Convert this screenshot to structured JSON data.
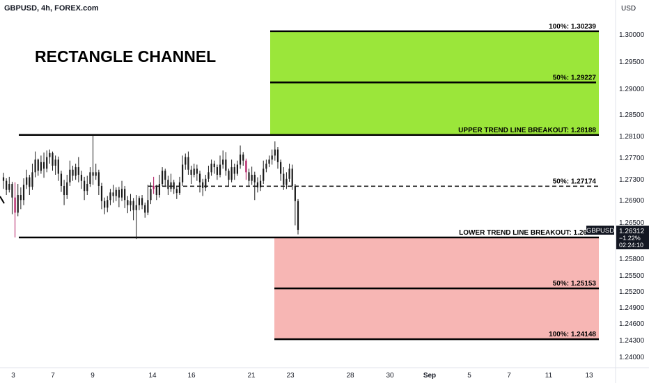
{
  "header": {
    "symbol": "GBPUSD, 4h, FOREX.com",
    "currency": "USD"
  },
  "title": "RECTANGLE CHANNEL",
  "colors": {
    "green_zone": "#9be63a",
    "red_zone": "#f7b6b4",
    "candle": "#1a1a1a",
    "candle_highlight": "#b0155e",
    "line": "#000000",
    "price_tag_bg": "#1a1a1a"
  },
  "price_axis": {
    "ticks": [
      "1.30000",
      "1.29500",
      "1.29000",
      "1.28500",
      "1.28100",
      "1.27700",
      "1.27300",
      "1.26900",
      "1.26500",
      "1.25800",
      "1.25500",
      "1.25200",
      "1.24900",
      "1.24600",
      "1.24300",
      "1.24000"
    ],
    "current_price": {
      "symbol": "GBPUSD",
      "price": "1.26312",
      "change": "−1.22%",
      "countdown": "02:24:10"
    }
  },
  "time_axis": {
    "ticks": [
      "3",
      "7",
      "9",
      "14",
      "16",
      "21",
      "23",
      "28",
      "30",
      "Sep",
      "5",
      "7",
      "11",
      "13"
    ]
  },
  "levels": {
    "upper_100": "100%: 1.30239",
    "upper_50": "50%: 1.29227",
    "upper_breakout": "UPPER TREND LINE BREAKOUT: 1.28188",
    "mid_50": "50%: 1.27174",
    "lower_breakout": "LOWER TREND LINE BREAKOUT: 1.26",
    "lower_50": "50%: 1.25153",
    "lower_100": "100%: 1.24148"
  },
  "chart_data": {
    "type": "candlestick",
    "symbol": "GBPUSD",
    "timeframe": "4h",
    "ylim": [
      1.2385,
      1.305
    ],
    "levels": [
      {
        "label": "100%",
        "value": 1.30239
      },
      {
        "label": "50%",
        "value": 1.29227
      },
      {
        "label": "UPPER TREND LINE BREAKOUT",
        "value": 1.28188
      },
      {
        "label": "50%",
        "value": 1.27174
      },
      {
        "label": "LOWER TREND LINE BREAKOUT",
        "value": 1.2616
      },
      {
        "label": "50%",
        "value": 1.25153
      },
      {
        "label": "100%",
        "value": 1.24148
      }
    ],
    "candles": [
      [
        1.2735,
        1.2728,
        1.2744,
        1.2712
      ],
      [
        1.2728,
        1.271,
        1.2733,
        1.27
      ],
      [
        1.271,
        1.2722,
        1.2736,
        1.2705
      ],
      [
        1.2722,
        1.2695,
        1.2726,
        1.2662
      ],
      [
        1.2695,
        1.2665,
        1.2725,
        1.2616
      ],
      [
        1.2665,
        1.27,
        1.2722,
        1.2658
      ],
      [
        1.27,
        1.269,
        1.2715,
        1.2672
      ],
      [
        1.269,
        1.272,
        1.2733,
        1.268
      ],
      [
        1.272,
        1.2735,
        1.275,
        1.2712
      ],
      [
        1.2735,
        1.2716,
        1.274,
        1.27
      ],
      [
        1.2716,
        1.2745,
        1.2762,
        1.271
      ],
      [
        1.2745,
        1.277,
        1.2786,
        1.2735
      ],
      [
        1.277,
        1.2748,
        1.2772,
        1.2738
      ],
      [
        1.2748,
        1.2765,
        1.2778,
        1.2742
      ],
      [
        1.2765,
        1.2752,
        1.2784,
        1.2734
      ],
      [
        1.2752,
        1.2775,
        1.2788,
        1.2745
      ],
      [
        1.2775,
        1.2783,
        1.279,
        1.2762
      ],
      [
        1.2783,
        1.2758,
        1.2786,
        1.2748
      ],
      [
        1.2758,
        1.277,
        1.2778,
        1.274
      ],
      [
        1.277,
        1.2742,
        1.2776,
        1.2728
      ],
      [
        1.2742,
        1.2718,
        1.2748,
        1.2706
      ],
      [
        1.2718,
        1.27,
        1.273,
        1.268
      ],
      [
        1.27,
        1.2725,
        1.274,
        1.2692
      ],
      [
        1.2725,
        1.275,
        1.2768,
        1.2718
      ],
      [
        1.275,
        1.2738,
        1.2758,
        1.2728
      ],
      [
        1.2738,
        1.2755,
        1.2762,
        1.273
      ],
      [
        1.2755,
        1.274,
        1.2775,
        1.2725
      ],
      [
        1.274,
        1.2728,
        1.2748,
        1.2712
      ],
      [
        1.2728,
        1.2708,
        1.2736,
        1.269
      ],
      [
        1.2708,
        1.2722,
        1.2738,
        1.27
      ],
      [
        1.2722,
        1.2745,
        1.2755,
        1.2716
      ],
      [
        1.2745,
        1.2738,
        1.2818,
        1.272
      ],
      [
        1.2738,
        1.2745,
        1.2762,
        1.273
      ],
      [
        1.2745,
        1.2718,
        1.275,
        1.27
      ],
      [
        1.2718,
        1.2688,
        1.2724,
        1.2672
      ],
      [
        1.2688,
        1.2675,
        1.2695,
        1.2662
      ],
      [
        1.2675,
        1.269,
        1.2698,
        1.2666
      ],
      [
        1.269,
        1.2705,
        1.2712,
        1.268
      ],
      [
        1.2705,
        1.2698,
        1.272,
        1.2685
      ],
      [
        1.2698,
        1.271,
        1.2715,
        1.2688
      ],
      [
        1.271,
        1.2695,
        1.2716,
        1.2676
      ],
      [
        1.2695,
        1.2712,
        1.2728,
        1.2688
      ],
      [
        1.2712,
        1.269,
        1.2718,
        1.2674
      ],
      [
        1.269,
        1.268,
        1.2698,
        1.2664
      ],
      [
        1.268,
        1.2688,
        1.2702,
        1.2668
      ],
      [
        1.2688,
        1.267,
        1.2694,
        1.265
      ],
      [
        1.267,
        1.268,
        1.27,
        1.2613
      ],
      [
        1.268,
        1.2694,
        1.2698,
        1.267
      ],
      [
        1.2694,
        1.268,
        1.27,
        1.2672
      ],
      [
        1.268,
        1.2665,
        1.2685,
        1.2655
      ],
      [
        1.2665,
        1.269,
        1.272,
        1.266
      ],
      [
        1.269,
        1.2712,
        1.2725,
        1.2682
      ],
      [
        1.2712,
        1.2718,
        1.2736,
        1.2702
      ],
      [
        1.2718,
        1.27,
        1.272,
        1.269
      ],
      [
        1.27,
        1.2722,
        1.274,
        1.2695
      ],
      [
        1.2722,
        1.2748,
        1.2755,
        1.2718
      ],
      [
        1.2748,
        1.273,
        1.2752,
        1.2716
      ],
      [
        1.273,
        1.2712,
        1.2738,
        1.27
      ],
      [
        1.2712,
        1.2725,
        1.2742,
        1.2706
      ],
      [
        1.2725,
        1.2712,
        1.273,
        1.2702
      ],
      [
        1.2712,
        1.2704,
        1.2718,
        1.2692
      ],
      [
        1.2704,
        1.2725,
        1.2736,
        1.27
      ],
      [
        1.2725,
        1.276,
        1.2778,
        1.2718
      ],
      [
        1.276,
        1.2775,
        1.2782,
        1.275
      ],
      [
        1.2775,
        1.275,
        1.2786,
        1.274
      ],
      [
        1.275,
        1.274,
        1.2758,
        1.2722
      ],
      [
        1.274,
        1.2752,
        1.2762,
        1.2735
      ],
      [
        1.2752,
        1.2742,
        1.276,
        1.2728
      ],
      [
        1.2742,
        1.2725,
        1.2748,
        1.2705
      ],
      [
        1.2725,
        1.2714,
        1.2732,
        1.2698
      ],
      [
        1.2714,
        1.2732,
        1.274,
        1.2708
      ],
      [
        1.2732,
        1.2745,
        1.2758,
        1.2726
      ],
      [
        1.2745,
        1.2762,
        1.277,
        1.2738
      ],
      [
        1.2762,
        1.2755,
        1.2768,
        1.2742
      ],
      [
        1.2755,
        1.274,
        1.276,
        1.273
      ],
      [
        1.274,
        1.276,
        1.2778,
        1.2735
      ],
      [
        1.276,
        1.277,
        1.2788,
        1.2752
      ],
      [
        1.277,
        1.2748,
        1.2785,
        1.2738
      ],
      [
        1.2748,
        1.273,
        1.2752,
        1.2718
      ],
      [
        1.273,
        1.2755,
        1.277,
        1.2725
      ],
      [
        1.2755,
        1.2742,
        1.2762,
        1.273
      ],
      [
        1.2742,
        1.276,
        1.2768,
        1.2738
      ],
      [
        1.276,
        1.278,
        1.2798,
        1.2752
      ],
      [
        1.278,
        1.2768,
        1.2785,
        1.2758
      ],
      [
        1.2768,
        1.2745,
        1.2772,
        1.273
      ],
      [
        1.2745,
        1.2728,
        1.2752,
        1.2716
      ],
      [
        1.2728,
        1.274,
        1.2756,
        1.272
      ],
      [
        1.274,
        1.2725,
        1.2746,
        1.269
      ],
      [
        1.2725,
        1.2715,
        1.2735,
        1.2705
      ],
      [
        1.2715,
        1.2728,
        1.274,
        1.2708
      ],
      [
        1.2728,
        1.2752,
        1.2768,
        1.2722
      ],
      [
        1.2752,
        1.2762,
        1.277,
        1.2745
      ],
      [
        1.2762,
        1.277,
        1.2778,
        1.2755
      ],
      [
        1.277,
        1.2778,
        1.279,
        1.276
      ],
      [
        1.2778,
        1.279,
        1.2806,
        1.2768
      ],
      [
        1.279,
        1.2765,
        1.2795,
        1.2752
      ],
      [
        1.2765,
        1.2742,
        1.277,
        1.2728
      ],
      [
        1.2742,
        1.272,
        1.2755,
        1.271
      ],
      [
        1.272,
        1.2732,
        1.2745,
        1.2712
      ],
      [
        1.2732,
        1.2752,
        1.2762,
        1.2726
      ],
      [
        1.2752,
        1.2718,
        1.276,
        1.271
      ],
      [
        1.2718,
        1.2688,
        1.2722,
        1.264
      ],
      [
        1.2688,
        1.2631,
        1.2692,
        1.2622
      ]
    ]
  }
}
